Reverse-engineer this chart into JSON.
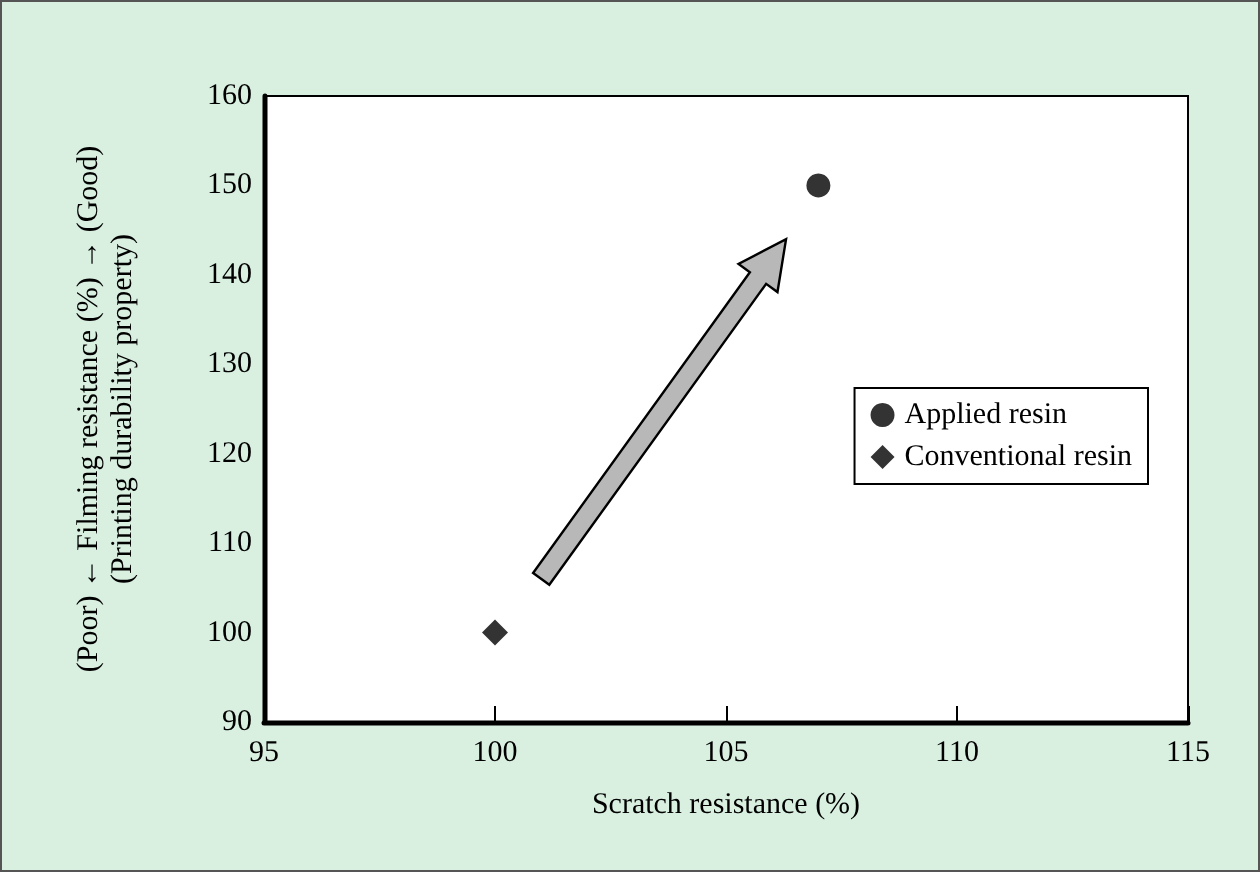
{
  "chart_data": {
    "type": "scatter",
    "xlabel": "Scratch resistance (%)",
    "ylabel": "(Poor) ← Filming resistance (%) → (Good)\n(Printing durability property)",
    "series": [
      {
        "name": "Applied resin",
        "color": "#000000",
        "marker": "circle",
        "x": [
          107
        ],
        "values": [
          150
        ]
      },
      {
        "name": "Conventional resin",
        "color": "#000000",
        "marker": "diamond",
        "x": [
          100
        ],
        "values": [
          100
        ]
      }
    ],
    "xlim": [
      95,
      115
    ],
    "xticks": [
      95,
      100,
      105,
      110,
      115
    ],
    "ylim": [
      90,
      160
    ],
    "yticks": [
      90,
      100,
      110,
      120,
      130,
      140,
      150,
      160
    ],
    "grid": false,
    "legend": "right"
  }
}
